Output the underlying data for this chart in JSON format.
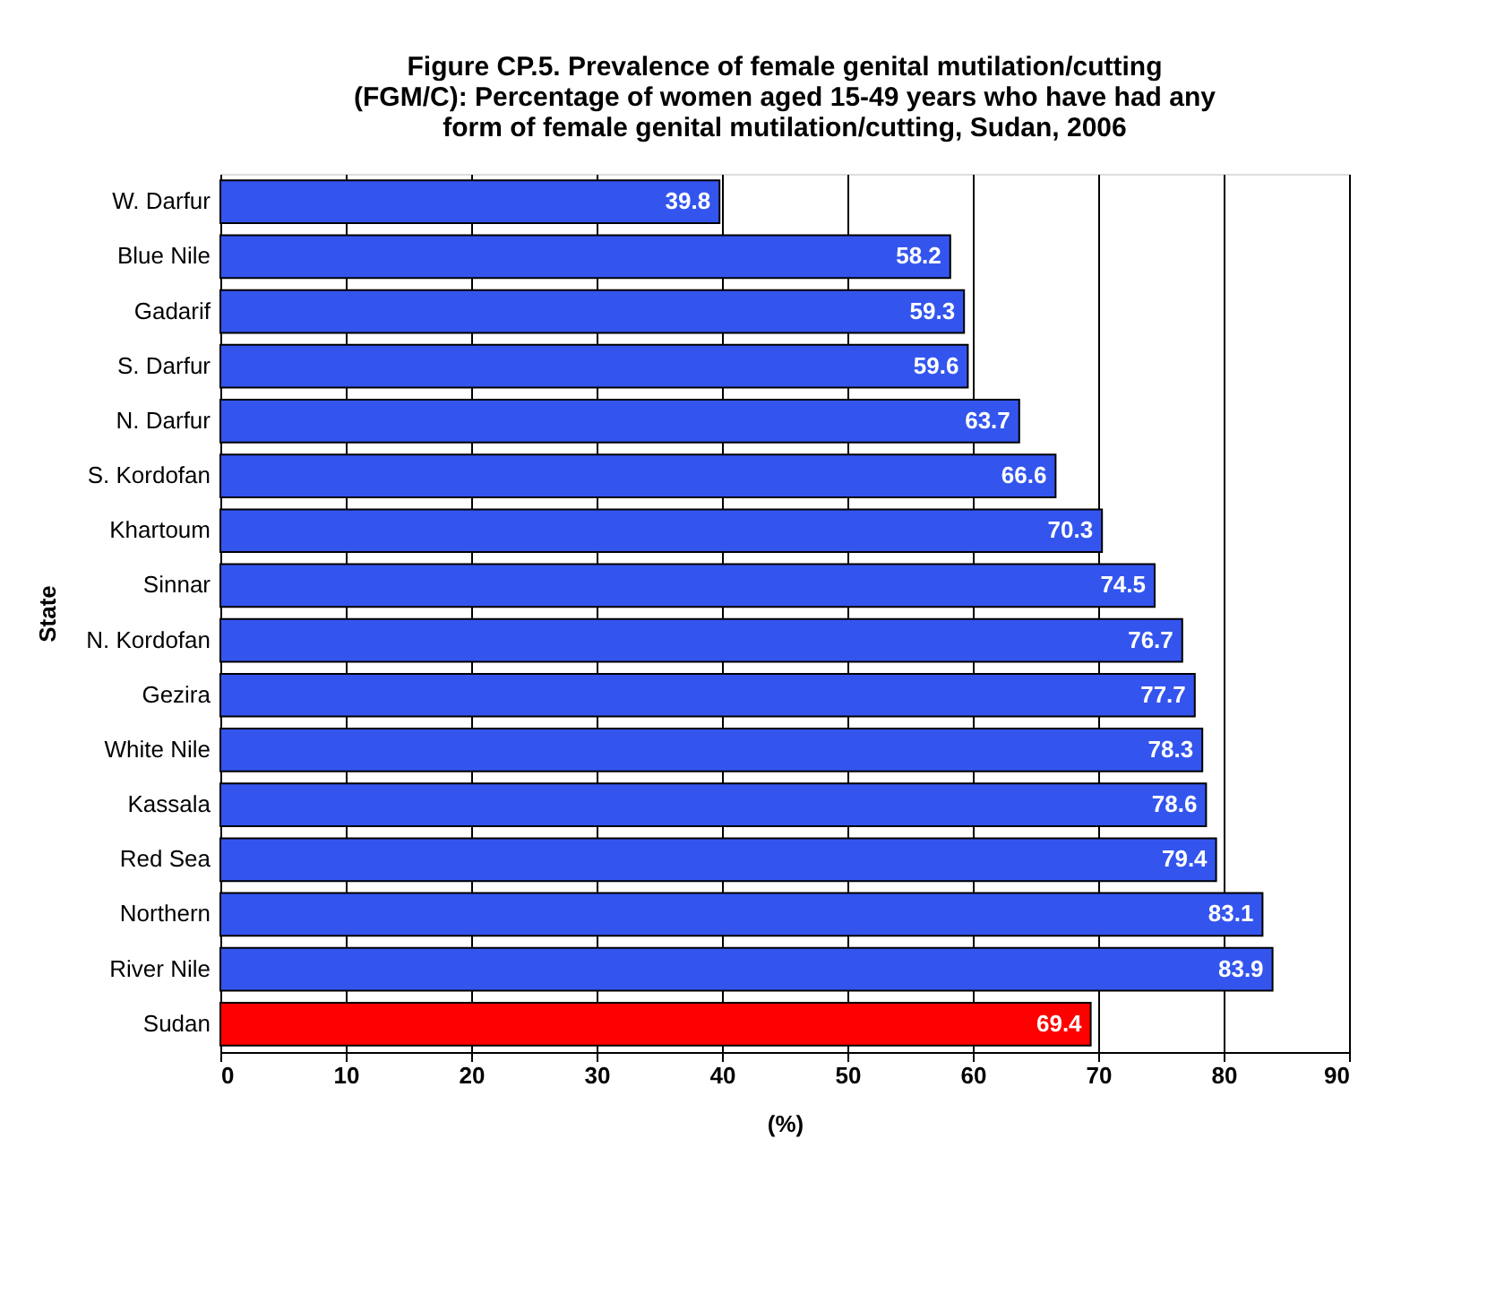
{
  "chart_data": {
    "type": "bar",
    "orientation": "horizontal",
    "title": "Figure CP.5. Prevalence of female genital mutilation/cutting (FGM/C): Percentage of women aged 15-49 years who have had any form of female genital mutilation/cutting, Sudan, 2006",
    "categories": [
      "W. Darfur",
      "Blue Nile",
      "Gadarif",
      "S. Darfur",
      "N. Darfur",
      "S. Kordofan",
      "Khartoum",
      "Sinnar",
      "N. Kordofan",
      "Gezira",
      "White Nile",
      "Kassala",
      "Red Sea",
      "Northern",
      "River Nile",
      "Sudan"
    ],
    "values": [
      39.8,
      58.2,
      59.3,
      59.6,
      63.7,
      66.6,
      70.3,
      74.5,
      76.7,
      77.7,
      78.3,
      78.6,
      79.4,
      83.1,
      83.9,
      69.4
    ],
    "colors": [
      "#3355ee",
      "#3355ee",
      "#3355ee",
      "#3355ee",
      "#3355ee",
      "#3355ee",
      "#3355ee",
      "#3355ee",
      "#3355ee",
      "#3355ee",
      "#3355ee",
      "#3355ee",
      "#3355ee",
      "#3355ee",
      "#3355ee",
      "#ff0000"
    ],
    "xlim": [
      0,
      90
    ],
    "xticks": [
      0,
      10,
      20,
      30,
      40,
      50,
      60,
      70,
      80,
      90
    ],
    "xlabel": "(%)",
    "ylabel": "State",
    "grid": "x",
    "data_labels": true
  }
}
